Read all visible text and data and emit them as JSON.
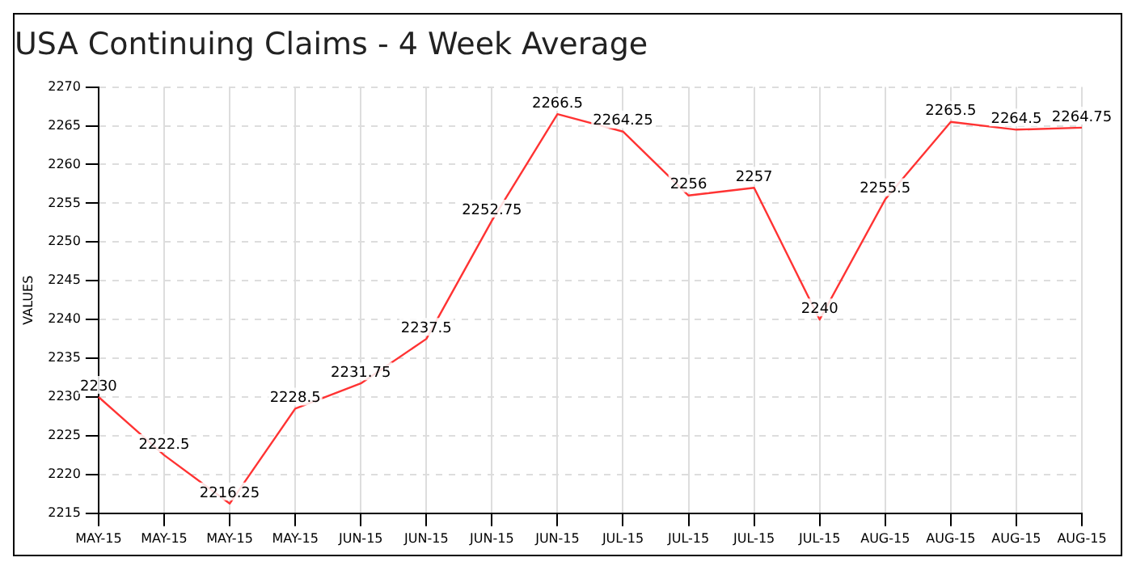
{
  "chart_data": {
    "type": "line",
    "title": "USA Continuing Claims - 4 Week Average",
    "ylabel": "VALUES",
    "categories": [
      "MAY-15",
      "MAY-15",
      "MAY-15",
      "MAY-15",
      "JUN-15",
      "JUN-15",
      "JUN-15",
      "JUN-15",
      "JUL-15",
      "JUL-15",
      "JUL-15",
      "JUL-15",
      "AUG-15",
      "AUG-15",
      "AUG-15",
      "AUG-15"
    ],
    "series": [
      {
        "color": "#ff3333",
        "values": [
          2230,
          2222.5,
          2216.25,
          2228.5,
          2231.75,
          2237.5,
          2252.75,
          2266.5,
          2264.25,
          2256,
          2257,
          2240,
          2255.5,
          2265.5,
          2264.5,
          2264.75
        ]
      }
    ],
    "ylim": [
      2215,
      2270
    ],
    "yticks": [
      2215,
      2220,
      2225,
      2230,
      2235,
      2240,
      2245,
      2250,
      2255,
      2260,
      2265,
      2270
    ],
    "grid": true,
    "legend": false,
    "marker": "none",
    "line_style": "solid",
    "data_labels": true
  }
}
